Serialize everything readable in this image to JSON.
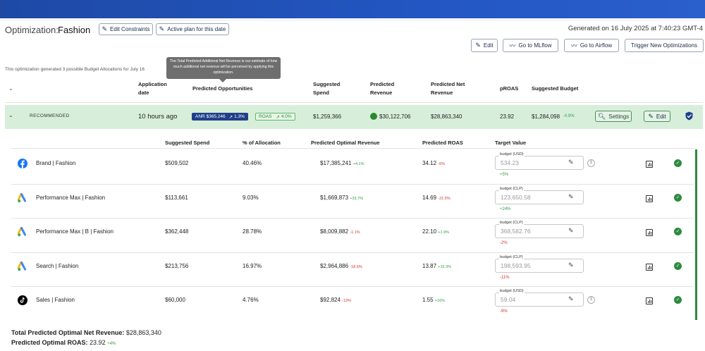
{
  "header": {
    "title_label": "Optimization:",
    "title_value": "Fashion",
    "edit_constraints": "Edit Constraints",
    "active_plan": "Active plan for this date",
    "generated": "Generated on 16 July 2025 at 7:40:23 GMT-4",
    "edit": "Edit",
    "mlflow": "Go to MLflow",
    "airflow": "Go to Airflow",
    "trigger": "Trigger New Optimizations"
  },
  "info_text": "This optimization generated 3 possible Budget Allocations for July 16",
  "tooltip": "The Total Predicted Additional Net Revenue is our estimate of how much additional net revenue will be perceived by applying this optimization.",
  "columns": {
    "application_date": "Application date",
    "predicted_opportunities": "Predicted Opportunities",
    "suggested_spend": "Suggested Spend",
    "predicted_revenue": "Predicted Revenue",
    "predicted_net_revenue": "Predicted Net Revenue",
    "proas": "pROAS",
    "suggested_budget": "Suggested Budget"
  },
  "recommended": {
    "label": "RECOMMENDED",
    "date": "10 hours ago",
    "anr": "ANR $365.246",
    "anr_change": "1.3%",
    "roas": "ROAS",
    "roas_change": "4.0%",
    "spend": "$1,259,366",
    "revenue": "$30,122,706",
    "net_revenue": "$28,863,340",
    "proas": "23.92",
    "budget": "$1,284,098",
    "budget_change": "-0.9%",
    "settings": "Settings",
    "edit": "Edit",
    "status_color": "#2a8a2a"
  },
  "sub_columns": {
    "suggested_spend": "Suggested Spend",
    "allocation": "% of Allocation",
    "optimal_revenue": "Predicted Optimal Revenue",
    "roas": "Predicted ROAS",
    "target": "Target Value"
  },
  "rows": [
    {
      "icon": "facebook-icon",
      "name": "Brand | Fashion",
      "spend": "$509,502",
      "alloc": "40.46%",
      "rev": "$17,385,241",
      "rev_change": "+4.1%",
      "rev_dir": "up",
      "roas": "34.12",
      "roas_change": "-6%",
      "roas_dir": "down",
      "tv_label": "budget (USD)",
      "tv_value": "534.23",
      "tv_change": "+5%",
      "tv_dir": "up",
      "dollar": true
    },
    {
      "icon": "google-ads-icon",
      "name": "Performance Max | Fashion",
      "spend": "$113,661",
      "alloc": "9.03%",
      "rev": "$1,669,873",
      "rev_change": "+33.7%",
      "rev_dir": "up",
      "roas": "14.69",
      "roas_change": "-21.5%",
      "roas_dir": "down",
      "tv_label": "budget (CLP)",
      "tv_value": "123,650.58",
      "tv_change": "+24%",
      "tv_dir": "up",
      "dollar": false
    },
    {
      "icon": "google-ads-icon",
      "name": "Performance Max | B | Fashion",
      "spend": "$362,448",
      "alloc": "28.78%",
      "rev": "$8,009,882",
      "rev_change": "-1.1%",
      "rev_dir": "down",
      "roas": "22.10",
      "roas_change": "+1.9%",
      "roas_dir": "up",
      "tv_label": "budget (CLP)",
      "tv_value": "368,582.76",
      "tv_change": "-2%",
      "tv_dir": "down",
      "dollar": false
    },
    {
      "icon": "google-ads-icon",
      "name": "Search | Fashion",
      "spend": "$213,756",
      "alloc": "16.97%",
      "rev": "$2,964,886",
      "rev_change": "-18.6%",
      "rev_dir": "down",
      "roas": "13.87",
      "roas_change": "+16.3%",
      "roas_dir": "up",
      "tv_label": "budget (CLP)",
      "tv_value": "198,593.95",
      "tv_change": "-11%",
      "tv_dir": "down",
      "dollar": false
    },
    {
      "icon": "tiktok-icon",
      "name": "Sales | Fashion",
      "spend": "$60,000",
      "alloc": "4.76%",
      "rev": "$92,824",
      "rev_change": "-13%",
      "rev_dir": "down",
      "roas": "1.55",
      "roas_change": "+16%",
      "roas_dir": "up",
      "tv_label": "budget (USD)",
      "tv_value": "59.04",
      "tv_change": "-9%",
      "tv_dir": "down",
      "dollar": true
    }
  ],
  "footer": {
    "net_label": "Total Predicted Optimal Net Revenue:",
    "net_value": "$28,863,340",
    "roas_label": "Predicted Optimal ROAS:",
    "roas_value": "23.92",
    "roas_change": "+4%"
  }
}
